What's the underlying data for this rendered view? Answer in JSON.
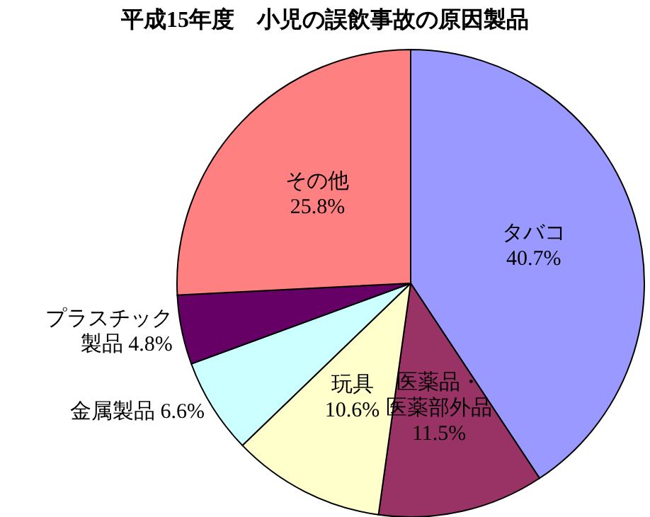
{
  "chart_data": {
    "type": "pie",
    "title": "平成15年度　小児の誤飲事故の原因製品",
    "categories": [
      "タバコ",
      "医薬品・医薬部外品",
      "玩具",
      "金属製品",
      "プラスチック製品",
      "その他"
    ],
    "values": [
      40.7,
      11.5,
      10.6,
      6.6,
      4.8,
      25.8
    ],
    "value_labels": [
      "40.7%",
      "11.5%",
      "10.6%",
      "6.6%",
      "4.8%",
      "25.8%"
    ],
    "colors": [
      "#9999ff",
      "#993366",
      "#ffffcc",
      "#ccffff",
      "#660066",
      "#ff8080"
    ],
    "legend": false
  }
}
